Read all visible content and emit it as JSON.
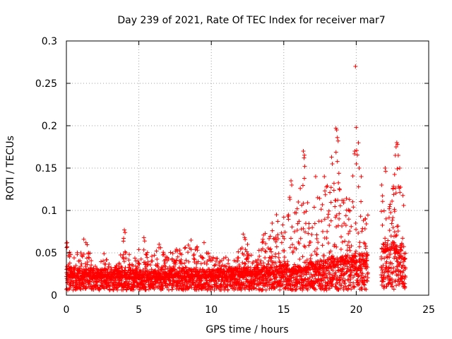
{
  "chart_data": {
    "type": "scatter",
    "title": "Day 239 of 2021, Rate Of TEC Index for receiver mar7",
    "xlabel": "GPS time / hours",
    "ylabel": "ROTI / TECUs",
    "xlim": [
      0,
      25
    ],
    "ylim": [
      0,
      0.3
    ],
    "x_ticks": [
      0,
      5,
      10,
      15,
      20,
      25
    ],
    "y_ticks": [
      0,
      0.05,
      0.1,
      0.15,
      0.2,
      0.25,
      0.3
    ],
    "x_tick_labels": [
      "0",
      "5",
      "10",
      "15",
      "20",
      "25"
    ],
    "y_tick_labels": [
      "0",
      "0.05",
      "0.1",
      "0.15",
      "0.2",
      "0.25",
      "0.3"
    ],
    "grid": true,
    "marker": "plus",
    "colors": {
      "series": "#ff0000",
      "grid": "#a0a0a0",
      "axis": "#000000"
    },
    "data_gap_hours": [
      20.8,
      21.7
    ],
    "envelope": [
      {
        "x": 0.0,
        "y": 0.062
      },
      {
        "x": 0.5,
        "y": 0.045
      },
      {
        "x": 1.0,
        "y": 0.055
      },
      {
        "x": 1.3,
        "y": 0.066
      },
      {
        "x": 2.0,
        "y": 0.035
      },
      {
        "x": 2.6,
        "y": 0.049
      },
      {
        "x": 3.0,
        "y": 0.036
      },
      {
        "x": 3.6,
        "y": 0.035
      },
      {
        "x": 4.0,
        "y": 0.077
      },
      {
        "x": 4.5,
        "y": 0.035
      },
      {
        "x": 5.3,
        "y": 0.068
      },
      {
        "x": 6.0,
        "y": 0.045
      },
      {
        "x": 6.4,
        "y": 0.06
      },
      {
        "x": 7.0,
        "y": 0.048
      },
      {
        "x": 7.5,
        "y": 0.055
      },
      {
        "x": 8.0,
        "y": 0.055
      },
      {
        "x": 8.6,
        "y": 0.065
      },
      {
        "x": 9.0,
        "y": 0.057
      },
      {
        "x": 9.5,
        "y": 0.062
      },
      {
        "x": 10.0,
        "y": 0.045
      },
      {
        "x": 11.0,
        "y": 0.045
      },
      {
        "x": 11.5,
        "y": 0.04
      },
      {
        "x": 12.2,
        "y": 0.072
      },
      {
        "x": 12.5,
        "y": 0.06
      },
      {
        "x": 13.0,
        "y": 0.045
      },
      {
        "x": 13.6,
        "y": 0.071
      },
      {
        "x": 14.2,
        "y": 0.085
      },
      {
        "x": 14.6,
        "y": 0.095
      },
      {
        "x": 15.0,
        "y": 0.092
      },
      {
        "x": 15.5,
        "y": 0.135
      },
      {
        "x": 16.0,
        "y": 0.11
      },
      {
        "x": 16.4,
        "y": 0.17
      },
      {
        "x": 16.8,
        "y": 0.098
      },
      {
        "x": 17.2,
        "y": 0.14
      },
      {
        "x": 17.7,
        "y": 0.12
      },
      {
        "x": 18.0,
        "y": 0.14
      },
      {
        "x": 18.3,
        "y": 0.163
      },
      {
        "x": 18.6,
        "y": 0.197
      },
      {
        "x": 19.0,
        "y": 0.135
      },
      {
        "x": 19.4,
        "y": 0.13
      },
      {
        "x": 19.7,
        "y": 0.105
      },
      {
        "x": 19.95,
        "y": 0.27
      },
      {
        "x": 20.3,
        "y": 0.14
      },
      {
        "x": 20.7,
        "y": 0.095
      },
      {
        "x": 21.7,
        "y": 0.13
      },
      {
        "x": 22.0,
        "y": 0.15
      },
      {
        "x": 22.5,
        "y": 0.12
      },
      {
        "x": 22.8,
        "y": 0.18
      },
      {
        "x": 23.1,
        "y": 0.15
      },
      {
        "x": 23.4,
        "y": 0.08
      }
    ],
    "baseline": [
      {
        "x": 0.0,
        "y": 0.022
      },
      {
        "x": 5.0,
        "y": 0.02
      },
      {
        "x": 10.0,
        "y": 0.021
      },
      {
        "x": 14.0,
        "y": 0.024
      },
      {
        "x": 16.0,
        "y": 0.028
      },
      {
        "x": 18.0,
        "y": 0.033
      },
      {
        "x": 19.5,
        "y": 0.038
      },
      {
        "x": 20.8,
        "y": 0.04
      },
      {
        "x": 21.7,
        "y": 0.05
      },
      {
        "x": 22.5,
        "y": 0.055
      },
      {
        "x": 23.4,
        "y": 0.04
      }
    ],
    "points": [
      {
        "x": 0.05,
        "y": 0.062
      },
      {
        "x": 0.05,
        "y": 0.057
      },
      {
        "x": 0.3,
        "y": 0.048
      },
      {
        "x": 1.2,
        "y": 0.066
      },
      {
        "x": 1.35,
        "y": 0.062
      },
      {
        "x": 1.0,
        "y": 0.05
      },
      {
        "x": 2.6,
        "y": 0.049
      },
      {
        "x": 4.0,
        "y": 0.077
      },
      {
        "x": 4.05,
        "y": 0.074
      },
      {
        "x": 4.1,
        "y": 0.05
      },
      {
        "x": 5.35,
        "y": 0.068
      },
      {
        "x": 5.4,
        "y": 0.064
      },
      {
        "x": 6.4,
        "y": 0.06
      },
      {
        "x": 6.5,
        "y": 0.056
      },
      {
        "x": 8.6,
        "y": 0.065
      },
      {
        "x": 9.5,
        "y": 0.062
      },
      {
        "x": 12.2,
        "y": 0.072
      },
      {
        "x": 12.3,
        "y": 0.068
      },
      {
        "x": 12.5,
        "y": 0.06
      },
      {
        "x": 13.6,
        "y": 0.071
      },
      {
        "x": 14.2,
        "y": 0.085
      },
      {
        "x": 14.5,
        "y": 0.095
      },
      {
        "x": 15.0,
        "y": 0.092
      },
      {
        "x": 15.5,
        "y": 0.135
      },
      {
        "x": 15.55,
        "y": 0.13
      },
      {
        "x": 16.0,
        "y": 0.11
      },
      {
        "x": 16.35,
        "y": 0.17
      },
      {
        "x": 16.4,
        "y": 0.162
      },
      {
        "x": 16.45,
        "y": 0.152
      },
      {
        "x": 17.2,
        "y": 0.14
      },
      {
        "x": 17.8,
        "y": 0.14
      },
      {
        "x": 18.3,
        "y": 0.163
      },
      {
        "x": 18.35,
        "y": 0.155
      },
      {
        "x": 18.6,
        "y": 0.197
      },
      {
        "x": 18.65,
        "y": 0.195
      },
      {
        "x": 18.7,
        "y": 0.186
      },
      {
        "x": 18.75,
        "y": 0.182
      },
      {
        "x": 19.95,
        "y": 0.27
      },
      {
        "x": 20.0,
        "y": 0.198
      },
      {
        "x": 19.9,
        "y": 0.17
      },
      {
        "x": 20.2,
        "y": 0.15
      },
      {
        "x": 20.35,
        "y": 0.14
      },
      {
        "x": 22.7,
        "y": 0.165
      },
      {
        "x": 22.75,
        "y": 0.175
      },
      {
        "x": 22.8,
        "y": 0.18
      },
      {
        "x": 22.85,
        "y": 0.178
      },
      {
        "x": 22.9,
        "y": 0.165
      },
      {
        "x": 22.0,
        "y": 0.15
      },
      {
        "x": 23.0,
        "y": 0.15
      },
      {
        "x": 21.75,
        "y": 0.13
      }
    ]
  }
}
